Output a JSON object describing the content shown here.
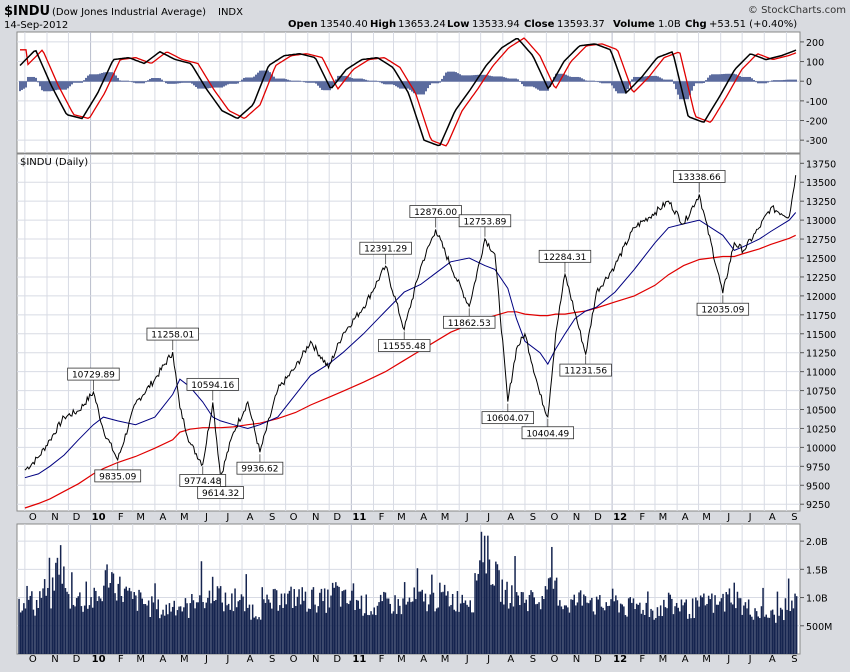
{
  "header": {
    "symbol": "$INDU",
    "name": "(Dow Jones Industrial Average)",
    "exchange": "INDX",
    "date": "14-Sep-2012",
    "watermark": "© StockCharts.com",
    "open_label": "Open",
    "open": "13540.40",
    "high_label": "High",
    "high": "13653.24",
    "low_label": "Low",
    "low": "13533.94",
    "close_label": "Close",
    "close": "13593.37",
    "volume_label": "Volume",
    "volume": "1.0B",
    "chg_label": "Chg",
    "chg": "+53.51 (+0.40%)"
  },
  "colors": {
    "price": "#000000",
    "ma_fast": "#000080",
    "ma_slow": "#e00000",
    "volume": "#15244f",
    "hist": "#5b6b9e",
    "osc_signal": "#e00000",
    "panel_bg": "#ffffff",
    "grid": "#d8dbe4",
    "frame_bg": "#d9dbe0"
  },
  "chart_data": [
    {
      "type": "line",
      "title": "",
      "series": [
        {
          "name": "",
          "values": [
            80,
            160,
            -20,
            -170,
            -190,
            -60,
            110,
            120,
            90,
            150,
            110,
            90,
            -40,
            -150,
            -190,
            -120,
            80,
            130,
            140,
            120,
            -40,
            60,
            110,
            120,
            70,
            -60,
            -300,
            -330,
            -150,
            -40,
            80,
            170,
            220,
            130,
            -40,
            100,
            180,
            190,
            160,
            -60,
            20,
            120,
            150,
            -180,
            -210,
            -80,
            60,
            140,
            110,
            130,
            160
          ]
        }
      ],
      "ylim": [
        -350,
        230
      ],
      "yticks": [
        "200",
        "100",
        "0",
        "-100",
        "-200",
        "-300"
      ],
      "ytick_values": [
        200,
        100,
        0,
        -100,
        -200,
        -300
      ]
    },
    {
      "type": "line",
      "title": "$INDU (Daily)",
      "x": [
        "2009-10-01",
        "2009-10-20",
        "2009-11-05",
        "2009-11-25",
        "2009-12-15",
        "2010-01-05",
        "2010-01-19",
        "2010-02-08",
        "2010-03-05",
        "2010-04-01",
        "2010-04-26",
        "2010-05-06",
        "2010-05-20",
        "2010-06-07",
        "2010-06-21",
        "2010-07-02",
        "2010-07-20",
        "2010-08-09",
        "2010-08-26",
        "2010-09-20",
        "2010-10-15",
        "2010-11-05",
        "2010-11-30",
        "2010-12-20",
        "2011-01-18",
        "2011-02-18",
        "2011-03-16",
        "2011-04-08",
        "2011-04-29",
        "2011-05-20",
        "2011-06-15",
        "2011-07-07",
        "2011-07-21",
        "2011-08-08",
        "2011-08-20",
        "2011-09-01",
        "2011-09-22",
        "2011-10-03",
        "2011-10-14",
        "2011-10-27",
        "2011-11-10",
        "2011-11-25",
        "2011-12-10",
        "2012-01-05",
        "2012-02-01",
        "2012-03-01",
        "2012-03-20",
        "2012-04-10",
        "2012-05-02",
        "2012-06-04",
        "2012-06-20",
        "2012-07-03",
        "2012-07-25",
        "2012-08-10",
        "2012-09-05",
        "2012-09-14"
      ],
      "values": [
        9700,
        9870,
        10100,
        10400,
        10480,
        10729.89,
        10230,
        9835.09,
        10580,
        10900,
        11258.01,
        10520,
        10060,
        9774.48,
        10594.16,
        9614.32,
        10200,
        10600,
        9936.62,
        10760,
        11060,
        11400,
        11050,
        11500,
        11850,
        12391.29,
        11555.48,
        12380,
        12876.0,
        12400,
        11862.53,
        12753.89,
        12550,
        10604.07,
        11300,
        11500,
        10700,
        10404.49,
        11500,
        12284.31,
        11780,
        11231.56,
        12050,
        12400,
        12900,
        13100,
        13250,
        12950,
        13338.66,
        12035.09,
        12700,
        12600,
        12900,
        13160,
        13050,
        13593.37
      ],
      "ma50": [
        9600,
        9650,
        9750,
        9900,
        10100,
        10300,
        10400,
        10350,
        10300,
        10400,
        10700,
        10900,
        10800,
        10600,
        10400,
        10350,
        10300,
        10250,
        10300,
        10400,
        10700,
        10950,
        11100,
        11250,
        11500,
        11800,
        12050,
        12150,
        12300,
        12450,
        12500,
        12400,
        12350,
        12100,
        11700,
        11400,
        11250,
        11100,
        11300,
        11500,
        11700,
        11800,
        11850,
        12050,
        12350,
        12700,
        12900,
        12950,
        13000,
        12800,
        12600,
        12650,
        12750,
        12850,
        13000,
        13100
      ],
      "ma200": [
        9200,
        9260,
        9320,
        9420,
        9520,
        9650,
        9720,
        9800,
        9880,
        9990,
        10100,
        10200,
        10240,
        10260,
        10260,
        10260,
        10270,
        10300,
        10320,
        10380,
        10460,
        10560,
        10660,
        10740,
        10860,
        11000,
        11150,
        11280,
        11400,
        11520,
        11620,
        11700,
        11740,
        11790,
        11790,
        11760,
        11740,
        11740,
        11760,
        11760,
        11780,
        11800,
        11840,
        11920,
        12000,
        12140,
        12280,
        12400,
        12480,
        12520,
        12520,
        12560,
        12620,
        12680,
        12760,
        12800
      ],
      "annotations": [
        "10729.89",
        "9835.09",
        "11258.01",
        "10594.16",
        "9774.48",
        "9614.32",
        "9936.62",
        "12391.29",
        "11555.48",
        "12876.00",
        "11862.53",
        "12753.89",
        "10604.07",
        "10404.49",
        "12284.31",
        "11231.56",
        "13338.66",
        "12035.09"
      ],
      "ylim": [
        9200,
        13820
      ],
      "yticks": [
        "13750",
        "13500",
        "13250",
        "13000",
        "12750",
        "12500",
        "12250",
        "12000",
        "11750",
        "11500",
        "11250",
        "11000",
        "10750",
        "10500",
        "10250",
        "10000",
        "9750",
        "9500",
        "9250"
      ],
      "ytick_values": [
        13750,
        13500,
        13250,
        13000,
        12750,
        12500,
        12250,
        12000,
        11750,
        11500,
        11250,
        11000,
        10750,
        10500,
        10250,
        10000,
        9750,
        9500,
        9250
      ]
    },
    {
      "type": "bar",
      "title": "",
      "values": [
        0.95,
        1.1,
        0.9,
        1.2,
        1.05,
        1.9,
        1.0,
        1.1,
        0.95,
        1.0,
        1.05,
        1.55,
        1.3,
        1.15,
        1.0,
        1.0,
        0.9,
        0.85,
        0.8,
        0.95,
        0.9,
        0.85,
        1.15,
        0.95,
        1.3,
        1.0,
        0.95,
        1.0,
        0.9,
        0.8,
        0.85,
        0.95,
        1.05,
        1.0,
        1.1,
        0.95,
        1.05,
        1.0,
        1.0,
        1.2,
        1.0,
        1.0,
        0.95,
        0.9,
        0.85,
        0.95,
        0.95,
        0.9,
        0.95,
        1.05,
        1.0,
        1.0,
        1.1,
        1.05,
        1.0,
        1.1,
        1.0,
        2.2,
        1.7,
        1.35,
        1.1,
        1.15,
        1.05,
        1.0,
        1.0,
        1.1,
        1.3,
        0.95,
        0.95,
        1.0,
        1.2,
        0.9,
        0.9,
        1.0,
        0.95,
        0.85,
        0.9,
        0.9,
        0.8,
        0.85,
        0.9,
        0.9,
        0.85,
        0.85,
        0.9,
        1.0,
        0.9,
        0.95,
        1.2,
        0.9,
        0.85,
        0.8,
        0.75,
        0.7,
        0.8,
        0.9,
        1.0
      ],
      "ylim": [
        0,
        2.25
      ],
      "yticks": [
        "2.0B",
        "1.5B",
        "1.0B",
        "500M"
      ],
      "ytick_values": [
        2.0,
        1.5,
        1.0,
        0.5
      ]
    }
  ],
  "x_axis": {
    "months": [
      "O",
      "N",
      "D",
      "10",
      "F",
      "M",
      "A",
      "M",
      "J",
      "J",
      "A",
      "S",
      "O",
      "N",
      "D",
      "11",
      "F",
      "M",
      "A",
      "M",
      "J",
      "J",
      "A",
      "S",
      "O",
      "N",
      "D",
      "12",
      "F",
      "M",
      "A",
      "M",
      "J",
      "J",
      "A",
      "S"
    ],
    "year_labels": [
      "10",
      "11",
      "12"
    ]
  }
}
